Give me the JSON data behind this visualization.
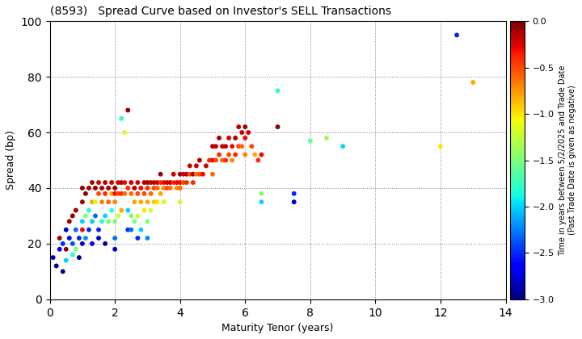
{
  "title": "(8593)   Spread Curve based on Investor's SELL Transactions",
  "xlabel": "Maturity Tenor (years)",
  "ylabel": "Spread (bp)",
  "colorbar_label_line1": "Time in years between 5/2/2025 and Trade Date",
  "colorbar_label_line2": "(Past Trade Date is given as negative)",
  "xlim": [
    0,
    14
  ],
  "ylim": [
    0,
    100
  ],
  "xticks": [
    0,
    2,
    4,
    6,
    8,
    10,
    12,
    14
  ],
  "yticks": [
    0,
    20,
    40,
    60,
    80,
    100
  ],
  "cbar_ticks": [
    0.0,
    -0.5,
    -1.0,
    -1.5,
    -2.0,
    -2.5,
    -3.0
  ],
  "cmin": -3.0,
  "cmax": 0.0,
  "points": [
    [
      0.1,
      15,
      -2.9
    ],
    [
      0.2,
      12,
      -3.0
    ],
    [
      0.3,
      18,
      -2.7
    ],
    [
      0.3,
      22,
      -0.1
    ],
    [
      0.4,
      10,
      -3.0
    ],
    [
      0.4,
      20,
      -2.5
    ],
    [
      0.5,
      25,
      -2.8
    ],
    [
      0.5,
      18,
      -0.05
    ],
    [
      0.5,
      14,
      -2.0
    ],
    [
      0.6,
      22,
      -2.6
    ],
    [
      0.6,
      28,
      -0.1
    ],
    [
      0.7,
      20,
      -2.4
    ],
    [
      0.7,
      30,
      -0.05
    ],
    [
      0.7,
      16,
      -1.8
    ],
    [
      0.8,
      25,
      -2.3
    ],
    [
      0.8,
      32,
      -0.1
    ],
    [
      0.8,
      18,
      -1.5
    ],
    [
      0.9,
      22,
      -2.5
    ],
    [
      0.9,
      15,
      -3.0
    ],
    [
      1.0,
      40,
      -0.05
    ],
    [
      1.0,
      28,
      -2.0
    ],
    [
      1.0,
      20,
      -2.8
    ],
    [
      1.0,
      35,
      -0.1
    ],
    [
      1.0,
      25,
      -0.3
    ],
    [
      1.1,
      38,
      -0.05
    ],
    [
      1.1,
      30,
      -1.5
    ],
    [
      1.1,
      22,
      -2.2
    ],
    [
      1.2,
      40,
      -0.1
    ],
    [
      1.2,
      32,
      -1.8
    ],
    [
      1.2,
      25,
      -2.5
    ],
    [
      1.3,
      42,
      -0.15
    ],
    [
      1.3,
      35,
      -0.8
    ],
    [
      1.3,
      28,
      -2.0
    ],
    [
      1.3,
      20,
      -2.7
    ],
    [
      1.4,
      40,
      -0.05
    ],
    [
      1.4,
      35,
      -1.2
    ],
    [
      1.4,
      30,
      -2.3
    ],
    [
      1.5,
      42,
      -0.2
    ],
    [
      1.5,
      38,
      -0.5
    ],
    [
      1.5,
      25,
      -2.5
    ],
    [
      1.5,
      22,
      -2.8
    ],
    [
      1.6,
      40,
      -0.1
    ],
    [
      1.6,
      35,
      -0.7
    ],
    [
      1.6,
      28,
      -1.8
    ],
    [
      1.7,
      42,
      -0.15
    ],
    [
      1.7,
      38,
      -0.4
    ],
    [
      1.7,
      30,
      -2.0
    ],
    [
      1.7,
      20,
      -2.9
    ],
    [
      1.8,
      40,
      -0.1
    ],
    [
      1.8,
      35,
      -0.6
    ],
    [
      1.8,
      28,
      -1.5
    ],
    [
      1.9,
      42,
      -0.2
    ],
    [
      1.9,
      38,
      -0.8
    ],
    [
      1.9,
      32,
      -1.8
    ],
    [
      2.0,
      40,
      -0.05
    ],
    [
      2.0,
      38,
      -0.3
    ],
    [
      2.0,
      35,
      -0.7
    ],
    [
      2.0,
      28,
      -1.5
    ],
    [
      2.0,
      22,
      -2.3
    ],
    [
      2.0,
      18,
      -2.8
    ],
    [
      2.1,
      42,
      -0.2
    ],
    [
      2.1,
      38,
      -0.5
    ],
    [
      2.1,
      30,
      -1.2
    ],
    [
      2.2,
      65,
      -1.8
    ],
    [
      2.2,
      42,
      -0.1
    ],
    [
      2.2,
      38,
      -0.4
    ],
    [
      2.2,
      32,
      -0.8
    ],
    [
      2.3,
      60,
      -1.2
    ],
    [
      2.3,
      42,
      -0.3
    ],
    [
      2.3,
      38,
      -0.6
    ],
    [
      2.4,
      68,
      -0.05
    ],
    [
      2.4,
      40,
      -0.4
    ],
    [
      2.4,
      32,
      -2.0
    ],
    [
      2.4,
      25,
      -2.5
    ],
    [
      2.5,
      42,
      -0.2
    ],
    [
      2.5,
      38,
      -0.6
    ],
    [
      2.5,
      30,
      -1.5
    ],
    [
      2.5,
      25,
      -2.3
    ],
    [
      2.6,
      40,
      -0.15
    ],
    [
      2.6,
      35,
      -0.8
    ],
    [
      2.6,
      28,
      -1.5
    ],
    [
      2.7,
      42,
      -0.2
    ],
    [
      2.7,
      38,
      -0.5
    ],
    [
      2.7,
      30,
      -1.2
    ],
    [
      2.7,
      22,
      -2.5
    ],
    [
      2.8,
      40,
      -0.3
    ],
    [
      2.8,
      35,
      -0.8
    ],
    [
      2.8,
      25,
      -2.0
    ],
    [
      2.9,
      42,
      -0.15
    ],
    [
      2.9,
      38,
      -0.5
    ],
    [
      2.9,
      32,
      -1.0
    ],
    [
      3.0,
      42,
      -0.1
    ],
    [
      3.0,
      40,
      -0.4
    ],
    [
      3.0,
      35,
      -0.8
    ],
    [
      3.0,
      28,
      -1.5
    ],
    [
      3.0,
      22,
      -2.2
    ],
    [
      3.1,
      42,
      -0.2
    ],
    [
      3.1,
      38,
      -0.6
    ],
    [
      3.1,
      32,
      -1.2
    ],
    [
      3.2,
      42,
      -0.15
    ],
    [
      3.2,
      40,
      -0.5
    ],
    [
      3.2,
      35,
      -0.9
    ],
    [
      3.3,
      42,
      -0.2
    ],
    [
      3.3,
      40,
      -0.6
    ],
    [
      3.3,
      35,
      -1.0
    ],
    [
      3.4,
      45,
      -0.1
    ],
    [
      3.4,
      42,
      -0.4
    ],
    [
      3.4,
      38,
      -0.8
    ],
    [
      3.5,
      42,
      -0.3
    ],
    [
      3.5,
      40,
      -0.7
    ],
    [
      3.5,
      35,
      -1.2
    ],
    [
      3.6,
      42,
      -0.2
    ],
    [
      3.6,
      40,
      -0.5
    ],
    [
      3.7,
      42,
      -0.15
    ],
    [
      3.7,
      40,
      -0.6
    ],
    [
      3.8,
      45,
      -0.2
    ],
    [
      3.8,
      42,
      -0.4
    ],
    [
      3.9,
      42,
      -0.3
    ],
    [
      3.9,
      40,
      -0.7
    ],
    [
      4.0,
      45,
      -0.1
    ],
    [
      4.0,
      42,
      -0.3
    ],
    [
      4.0,
      40,
      -0.6
    ],
    [
      4.0,
      35,
      -1.2
    ],
    [
      4.1,
      45,
      -0.2
    ],
    [
      4.1,
      42,
      -0.5
    ],
    [
      4.2,
      45,
      -0.15
    ],
    [
      4.2,
      42,
      -0.4
    ],
    [
      4.3,
      48,
      -0.2
    ],
    [
      4.3,
      45,
      -0.5
    ],
    [
      4.4,
      45,
      -0.1
    ],
    [
      4.4,
      42,
      -0.4
    ],
    [
      4.5,
      48,
      -0.2
    ],
    [
      4.5,
      45,
      -0.6
    ],
    [
      4.6,
      50,
      -0.15
    ],
    [
      4.6,
      45,
      -0.5
    ],
    [
      4.7,
      45,
      -0.3
    ],
    [
      4.8,
      48,
      -0.2
    ],
    [
      4.9,
      50,
      -0.4
    ],
    [
      5.0,
      55,
      -0.1
    ],
    [
      5.0,
      50,
      -0.3
    ],
    [
      5.0,
      45,
      -0.6
    ],
    [
      5.1,
      55,
      -0.2
    ],
    [
      5.1,
      50,
      -0.5
    ],
    [
      5.2,
      58,
      -0.1
    ],
    [
      5.2,
      52,
      -0.4
    ],
    [
      5.3,
      55,
      -0.2
    ],
    [
      5.3,
      50,
      -0.6
    ],
    [
      5.4,
      55,
      -0.15
    ],
    [
      5.4,
      50,
      -0.4
    ],
    [
      5.5,
      58,
      -0.2
    ],
    [
      5.5,
      52,
      -0.5
    ],
    [
      5.6,
      55,
      -0.3
    ],
    [
      5.6,
      50,
      -0.7
    ],
    [
      5.7,
      58,
      -0.1
    ],
    [
      5.7,
      52,
      -0.4
    ],
    [
      5.8,
      62,
      -0.15
    ],
    [
      5.8,
      55,
      -0.5
    ],
    [
      5.9,
      60,
      -0.2
    ],
    [
      5.9,
      55,
      -0.6
    ],
    [
      6.0,
      62,
      -0.1
    ],
    [
      6.0,
      58,
      -0.3
    ],
    [
      6.0,
      52,
      -0.7
    ],
    [
      6.1,
      60,
      -0.2
    ],
    [
      6.2,
      55,
      -0.5
    ],
    [
      6.3,
      52,
      -0.8
    ],
    [
      6.4,
      50,
      -0.4
    ],
    [
      6.5,
      52,
      -0.3
    ],
    [
      6.5,
      35,
      -2.0
    ],
    [
      6.5,
      38,
      -1.5
    ],
    [
      7.0,
      75,
      -1.8
    ],
    [
      7.0,
      62,
      -0.05
    ],
    [
      7.5,
      38,
      -2.5
    ],
    [
      7.5,
      35,
      -2.8
    ],
    [
      8.0,
      57,
      -1.6
    ],
    [
      8.5,
      58,
      -1.4
    ],
    [
      9.0,
      55,
      -2.0
    ],
    [
      12.0,
      55,
      -1.0
    ],
    [
      12.5,
      95,
      -2.5
    ],
    [
      13.0,
      78,
      -0.8
    ]
  ]
}
